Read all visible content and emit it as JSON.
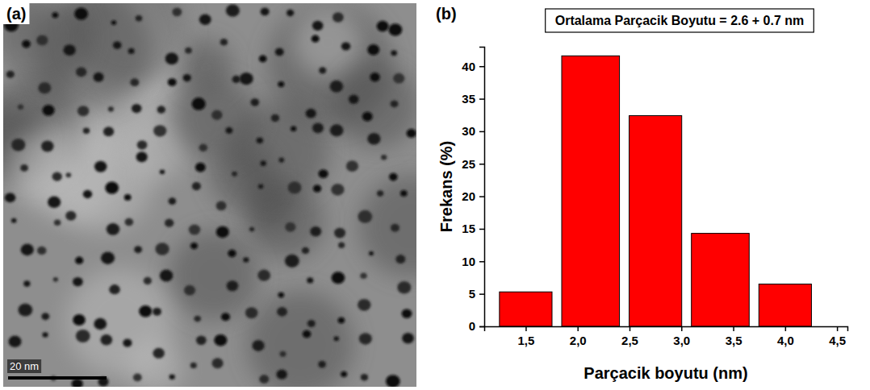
{
  "chart_data": [
    {
      "type": "image",
      "annotations": [
        "(a)",
        "20 nm"
      ]
    },
    {
      "type": "histogram",
      "annotations": [
        "(b)"
      ],
      "title": "Ortalama Parçacik Boyutu = 2.6 + 0.7 nm",
      "x_label": "Parçacik boyutu (nm)",
      "y_label": "Frekans (%)",
      "bins": [
        1.2,
        1.8,
        2.45,
        3.05,
        3.7,
        4.3
      ],
      "values": [
        5.3,
        41.6,
        32.4,
        14.3,
        6.5
      ],
      "color": "#ff0000",
      "xlim": [
        1.1,
        4.6
      ],
      "xticks": [
        {
          "value": 1.5,
          "label": "1,5"
        },
        {
          "value": 2.0,
          "label": "2,0"
        },
        {
          "value": 2.5,
          "label": "2,5"
        },
        {
          "value": 3.0,
          "label": "3,0"
        },
        {
          "value": 3.5,
          "label": "3,5"
        },
        {
          "value": 4.0,
          "label": "4,0"
        },
        {
          "value": 4.5,
          "label": "4,5"
        }
      ],
      "ylim": [
        0,
        43
      ],
      "yticks": [
        0,
        5,
        10,
        15,
        20,
        25,
        30,
        35,
        40
      ],
      "grid": false
    }
  ]
}
